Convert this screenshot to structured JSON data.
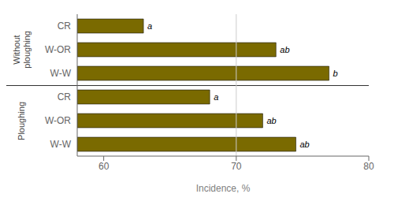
{
  "chart_data": {
    "type": "bar",
    "orientation": "horizontal",
    "groups": [
      {
        "label": "Without\nploughing",
        "categories": [
          "CR",
          "W-OR",
          "W-W"
        ],
        "values": [
          63.0,
          73.0,
          77.0
        ],
        "annotations": [
          "a",
          "ab",
          "b"
        ]
      },
      {
        "label": "Ploughing",
        "categories": [
          "CR",
          "W-OR",
          "W-W"
        ],
        "values": [
          68.0,
          72.0,
          74.5
        ],
        "annotations": [
          "a",
          "ab",
          "ab"
        ]
      }
    ],
    "color": "#7a6a00",
    "xlabel": "Incidence, %",
    "xlim": [
      58,
      80
    ],
    "xticks": [
      60,
      70,
      80
    ],
    "reference_line": {
      "x": 70,
      "color": "#cccccc"
    },
    "group_separator": {
      "color": "#333333"
    }
  }
}
